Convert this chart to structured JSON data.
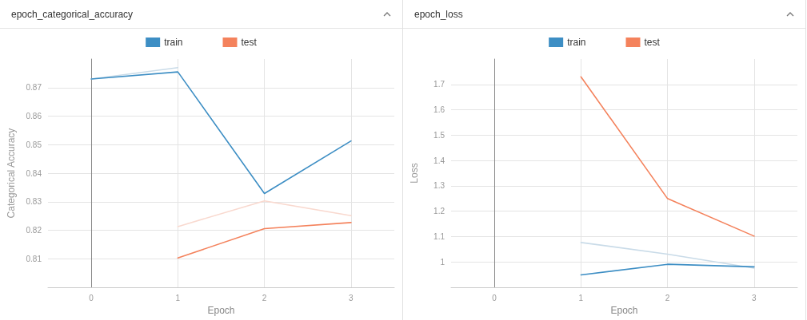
{
  "chart_data": [
    {
      "type": "line",
      "title": "epoch_categorical_accuracy",
      "xlabel": "Epoch",
      "ylabel": "Categorical Accuracy",
      "x": [
        0,
        1,
        2,
        3
      ],
      "xlim": [
        -0.5,
        3.5
      ],
      "xticks": [
        0,
        1,
        2,
        3
      ],
      "ylim": [
        0.8,
        0.88
      ],
      "yticks": [
        0.81,
        0.82,
        0.83,
        0.84,
        0.85,
        0.86,
        0.87
      ],
      "grid": true,
      "legend": "top",
      "marker": "none",
      "line_style": "solid",
      "series": [
        {
          "color": "#c9dbe8",
          "values": [
            0.873,
            0.877,
            null,
            null
          ]
        },
        {
          "color": "#f9d9cf",
          "values": [
            null,
            0.8213,
            0.8303,
            0.8251
          ]
        },
        {
          "name": "train",
          "color": "#3d8ec4",
          "values": [
            0.873,
            0.8755,
            0.8329,
            0.8513
          ]
        },
        {
          "name": "test",
          "color": "#f4825c",
          "values": [
            null,
            0.8103,
            0.8206,
            0.8227
          ]
        }
      ]
    },
    {
      "type": "line",
      "title": "epoch_loss",
      "xlabel": "Epoch",
      "ylabel": "Loss",
      "x": [
        1,
        2,
        3
      ],
      "xlim": [
        -0.5,
        3.5
      ],
      "xticks": [
        0,
        1,
        2,
        3
      ],
      "ylim": [
        0.9,
        1.8
      ],
      "yticks": [
        1,
        1.1,
        1.2,
        1.3,
        1.4,
        1.5,
        1.6,
        1.7
      ],
      "grid": true,
      "legend": "top",
      "marker": "none",
      "line_style": "solid",
      "series": [
        {
          "color": "#c9dbe8",
          "values": [
            1.077,
            1.031,
            0.976
          ]
        },
        {
          "name": "train",
          "color": "#3d8ec4",
          "values": [
            0.949,
            0.991,
            0.981
          ]
        },
        {
          "name": "test",
          "color": "#f4825c",
          "values": [
            1.73,
            1.25,
            1.102
          ]
        }
      ]
    }
  ]
}
